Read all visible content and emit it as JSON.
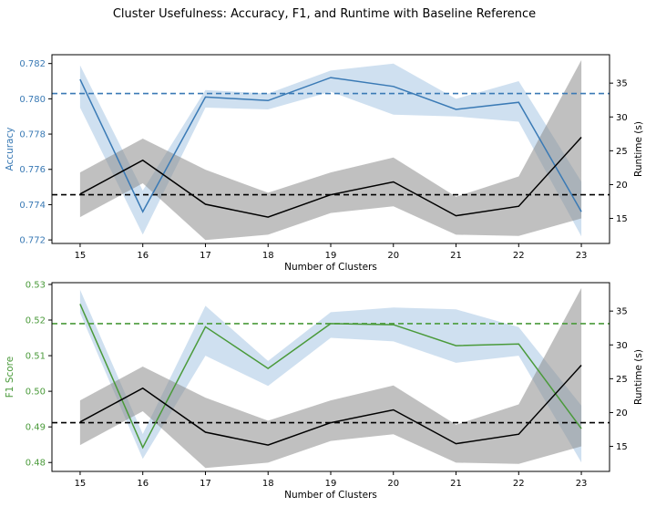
{
  "title": "Cluster Usefulness: Accuracy, F1, and Runtime with Baseline Reference",
  "colors": {
    "accuracy": "#3a7ab5",
    "f1": "#4a9a3a",
    "runtime": "#000000",
    "band": "#a8c6e3",
    "runtime_band": "#8c8c8c"
  },
  "chart_data": [
    {
      "type": "line",
      "xlabel": "Number of Clusters",
      "ylabel": "Accuracy",
      "y2label": "Runtime (s)",
      "x": [
        15,
        16,
        17,
        18,
        19,
        20,
        21,
        22,
        23
      ],
      "xlim": [
        14.55,
        23.45
      ],
      "ylim": [
        0.7718,
        0.7825
      ],
      "y2lim": [
        11.3,
        39.2
      ],
      "yticks": [
        "0.772",
        "0.774",
        "0.776",
        "0.778",
        "0.780",
        "0.782"
      ],
      "y2ticks": [
        "15",
        "20",
        "25",
        "30",
        "35"
      ],
      "xticks": [
        "15",
        "16",
        "17",
        "18",
        "19",
        "20",
        "21",
        "22",
        "23"
      ],
      "series": [
        {
          "axis": "left",
          "color": "#3a7ab5",
          "values": [
            0.7811,
            0.7736,
            0.7801,
            0.7799,
            0.7812,
            0.7807,
            0.7794,
            0.7798,
            0.7736
          ],
          "band_low": [
            0.7795,
            0.7723,
            0.7795,
            0.7794,
            0.7804,
            0.7791,
            0.779,
            0.7787,
            0.7722
          ],
          "band_high": [
            0.7819,
            0.7748,
            0.7805,
            0.7803,
            0.7816,
            0.782,
            0.78,
            0.781,
            0.7753
          ]
        },
        {
          "axis": "right",
          "color": "#000000",
          "values": [
            18.6,
            23.6,
            17.1,
            15.2,
            18.5,
            20.4,
            15.4,
            16.8,
            27.0
          ],
          "band_low": [
            15.2,
            20.2,
            11.8,
            12.6,
            15.8,
            16.8,
            12.6,
            12.4,
            15.0
          ],
          "band_high": [
            21.8,
            26.8,
            22.2,
            18.8,
            21.8,
            24.0,
            18.2,
            21.2,
            38.4
          ]
        }
      ],
      "baselines": [
        {
          "axis": "left",
          "value": 0.7803,
          "color": "#3a7ab5",
          "style": "dashed"
        },
        {
          "axis": "right",
          "value": 18.5,
          "color": "#000000",
          "style": "dashed"
        }
      ]
    },
    {
      "type": "line",
      "xlabel": "Number of Clusters",
      "ylabel": "F1 Score",
      "y2label": "Runtime (s)",
      "x": [
        15,
        16,
        17,
        18,
        19,
        20,
        21,
        22,
        23
      ],
      "xlim": [
        14.55,
        23.45
      ],
      "ylim": [
        0.4775,
        0.5305
      ],
      "y2lim": [
        11.3,
        39.2
      ],
      "yticks": [
        "0.48",
        "0.49",
        "0.50",
        "0.51",
        "0.52",
        "0.53"
      ],
      "y2ticks": [
        "15",
        "20",
        "25",
        "30",
        "35"
      ],
      "xticks": [
        "15",
        "16",
        "17",
        "18",
        "19",
        "20",
        "21",
        "22",
        "23"
      ],
      "series": [
        {
          "axis": "left",
          "color": "#4a9a3a",
          "values": [
            0.5245,
            0.4842,
            0.5181,
            0.5064,
            0.519,
            0.5187,
            0.5128,
            0.5133,
            0.4895
          ],
          "band_low": [
            0.522,
            0.481,
            0.51,
            0.5015,
            0.515,
            0.514,
            0.508,
            0.51,
            0.48
          ],
          "band_high": [
            0.5285,
            0.488,
            0.524,
            0.5085,
            0.5222,
            0.5235,
            0.523,
            0.518,
            0.496
          ]
        },
        {
          "axis": "right",
          "color": "#000000",
          "values": [
            18.6,
            23.6,
            17.1,
            15.2,
            18.5,
            20.4,
            15.4,
            16.8,
            27.0
          ],
          "band_low": [
            15.2,
            20.2,
            11.8,
            12.6,
            15.8,
            16.8,
            12.6,
            12.4,
            15.0
          ],
          "band_high": [
            21.8,
            26.8,
            22.2,
            18.8,
            21.8,
            24.0,
            18.2,
            21.2,
            38.4
          ]
        }
      ],
      "baselines": [
        {
          "axis": "left",
          "value": 0.519,
          "color": "#4a9a3a",
          "style": "dashed"
        },
        {
          "axis": "right",
          "value": 18.5,
          "color": "#000000",
          "style": "dashed"
        }
      ]
    }
  ]
}
